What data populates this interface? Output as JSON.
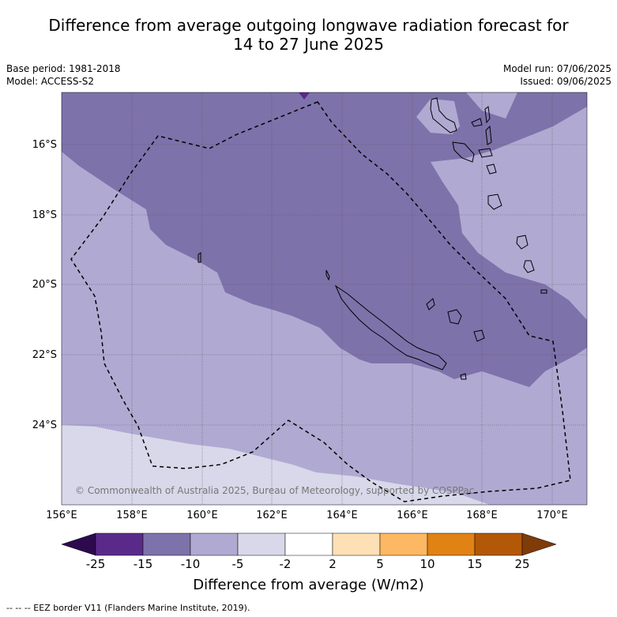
{
  "title_line1": "Difference from average outgoing longwave radiation forecast for",
  "title_line2": "14 to 27 June 2025",
  "base_period": "Base period: 1981-2018",
  "model": "Model: ACCESS-S2",
  "model_run": "Model run: 07/06/2025",
  "issued": "Issued: 09/06/2025",
  "lat_labels": [
    "16°S",
    "18°S",
    "20°S",
    "22°S",
    "24°S"
  ],
  "lon_labels": [
    "156°E",
    "158°E",
    "160°E",
    "162°E",
    "164°E",
    "166°E",
    "168°E",
    "170°E"
  ],
  "copyright": "© Commonwealth of Australia 2025, Bureau of Meteorology, supported by COSPPac",
  "colorbar": {
    "ticks": [
      "-25",
      "-15",
      "-10",
      "-5",
      "-2",
      "2",
      "5",
      "10",
      "15",
      "25"
    ],
    "colors": [
      "#2d0a4e",
      "#5a2a8a",
      "#7e72ab",
      "#b0aad2",
      "#d8d8ea",
      "#ffffff",
      "#fee0b6",
      "#fdb863",
      "#e08214",
      "#b35806",
      "#7f3b08"
    ],
    "label": "Difference from average (W/m2)"
  },
  "legend_note": "--  --  -- EEZ border V11 (Flanders Marine Institute, 2019)."
}
